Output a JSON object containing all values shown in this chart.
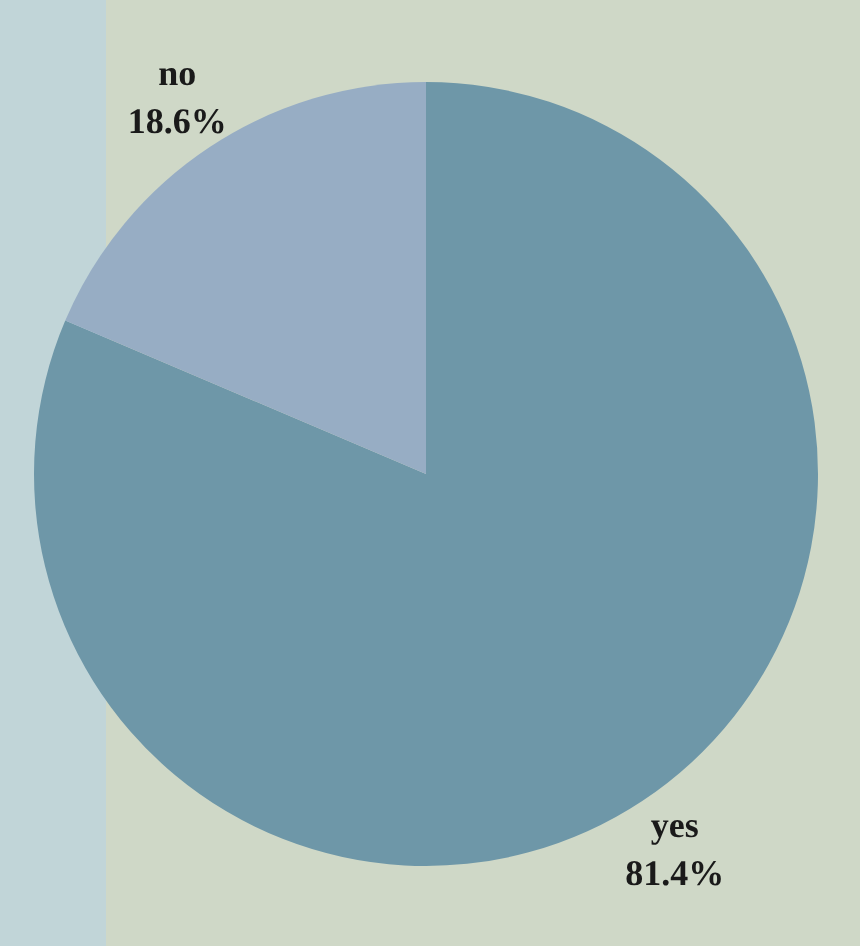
{
  "chart_data": {
    "type": "pie",
    "categories": [
      "yes",
      "no"
    ],
    "values": [
      81.4,
      18.6
    ],
    "colors": [
      "#6e97a8",
      "#97adc4"
    ],
    "value_labels": [
      "81.4%",
      "18.6%"
    ],
    "legend": false
  }
}
